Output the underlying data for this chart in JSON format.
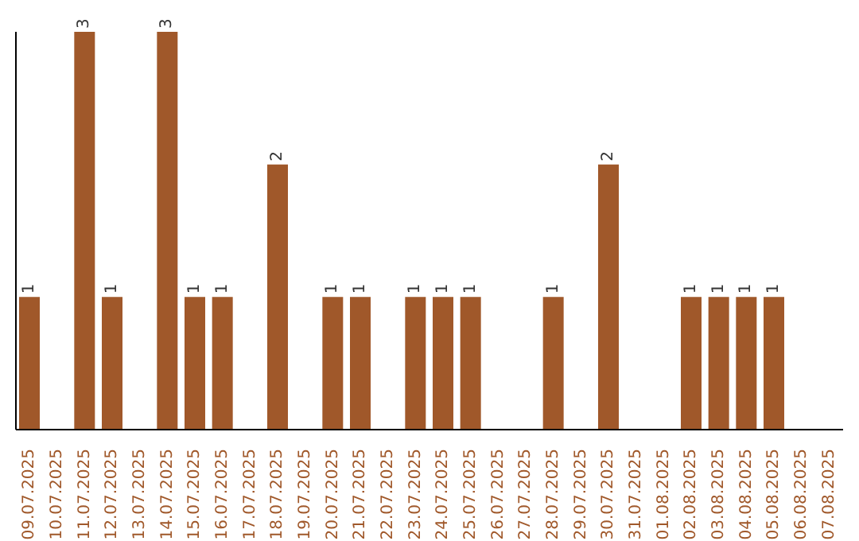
{
  "chart_data": {
    "type": "bar",
    "categories": [
      "09.07.2025",
      "10.07.2025",
      "11.07.2025",
      "12.07.2025",
      "13.07.2025",
      "14.07.2025",
      "15.07.2025",
      "16.07.2025",
      "17.07.2025",
      "18.07.2025",
      "19.07.2025",
      "20.07.2025",
      "21.07.2025",
      "22.07.2025",
      "23.07.2025",
      "24.07.2025",
      "25.07.2025",
      "26.07.2025",
      "27.07.2025",
      "28.07.2025",
      "29.07.2025",
      "30.07.2025",
      "31.07.2025",
      "01.08.2025",
      "02.08.2025",
      "03.08.2025",
      "04.08.2025",
      "05.08.2025",
      "06.08.2025",
      "07.08.2025"
    ],
    "values": [
      1,
      0,
      3,
      1,
      0,
      3,
      1,
      1,
      0,
      2,
      0,
      1,
      1,
      0,
      1,
      1,
      1,
      0,
      0,
      1,
      0,
      2,
      0,
      0,
      1,
      1,
      1,
      1,
      0,
      0
    ],
    "value_labels": [
      "1",
      null,
      "3",
      "1",
      null,
      "3",
      "1",
      "1",
      null,
      "2",
      null,
      "1",
      "1",
      null,
      "1",
      "1",
      "1",
      null,
      null,
      "1",
      null,
      "2",
      null,
      null,
      "1",
      "1",
      "1",
      "1",
      null,
      null
    ],
    "color": "#a0582a",
    "tick_labels": "x",
    "grid": false,
    "legend": false
  }
}
